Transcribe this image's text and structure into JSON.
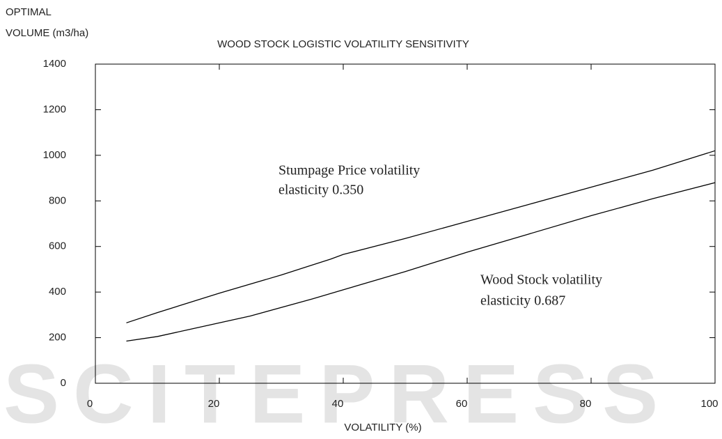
{
  "chart_data": {
    "type": "line",
    "title": "WOOD STOCK LOGISTIC VOLATILITY SENSITIVITY",
    "y_label": [
      "OPTIMAL",
      "VOLUME (m3/ha)"
    ],
    "x_label": "VOLATILITY (%)",
    "watermark": "SCITEPRESS",
    "annotations": [
      {
        "lines": [
          "Stumpage Price  volatility",
          "elasticity 0.350"
        ]
      },
      {
        "lines": [
          "Wood Stock volatility",
          "elasticity 0.687"
        ]
      }
    ],
    "series": [
      {
        "color": "#000000",
        "x": [
          5,
          10,
          20,
          30,
          38,
          40,
          50,
          60,
          70,
          80,
          90,
          100
        ],
        "values": [
          265,
          310,
          395,
          475,
          545,
          565,
          635,
          710,
          785,
          860,
          935,
          1020
        ]
      },
      {
        "color": "#000000",
        "x": [
          5,
          10,
          15,
          25,
          35,
          40,
          50,
          60,
          70,
          80,
          90,
          100
        ],
        "values": [
          185,
          205,
          235,
          295,
          370,
          410,
          490,
          575,
          655,
          735,
          810,
          880
        ]
      }
    ],
    "xlim": [
      0,
      100
    ],
    "xticks": [
      0,
      20,
      40,
      60,
      80,
      100
    ],
    "ylim": [
      0,
      1400
    ],
    "yticks": [
      0,
      200,
      400,
      600,
      800,
      1000,
      1200,
      1400
    ]
  }
}
